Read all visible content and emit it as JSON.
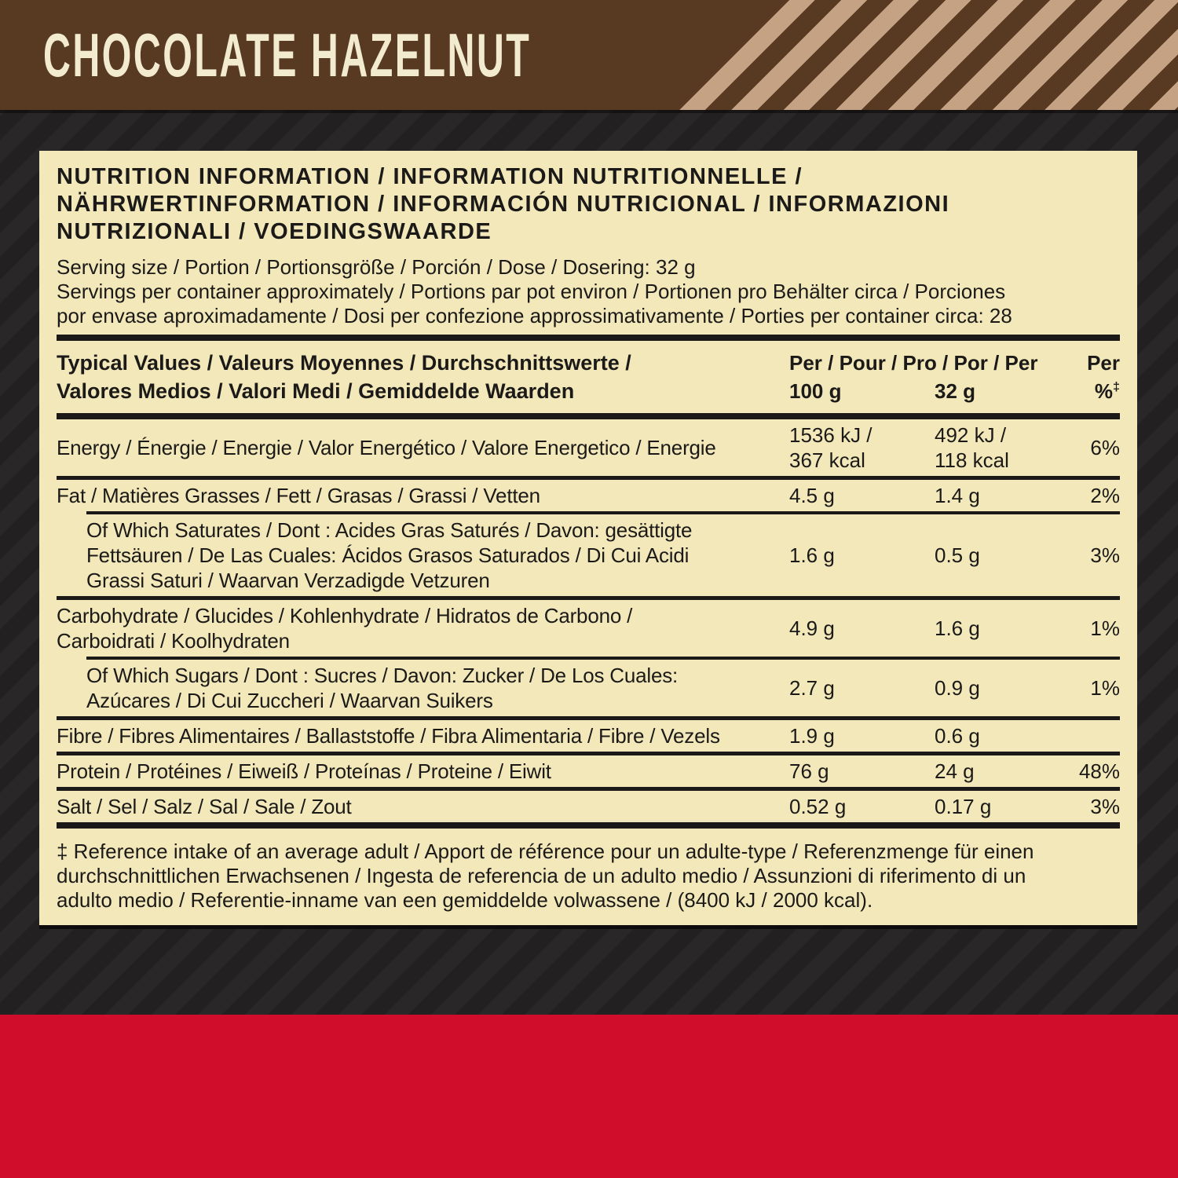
{
  "header": {
    "flavor": "CHOCOLATE HAZELNUT"
  },
  "panel": {
    "title": "NUTRITION INFORMATION / INFORMATION NUTRITIONNELLE /\nNÄHRWERTINFORMATION / INFORMACIÓN NUTRICIONAL / INFORMAZIONI\nNUTRIZIONALI / VOEDINGSWAARDE",
    "serving_size": "Serving size / Portion / Portionsgröße / Porción / Dose / Dosering: 32 g",
    "servings_per_container": "Servings per container approximately / Portions par pot environ / Portionen pro Behälter circa / Porciones\npor envase aproximadamente / Dosi per confezione approssimativamente / Porties per container circa: 28",
    "table": {
      "header": {
        "col_label": "Typical Values / Valeurs Moyennes / Durchschnittswerte /\nValores Medios / Valori Medi / Gemiddelde Waarden",
        "per_prefix": "Per / Pour / Pro / Por / Per",
        "per_last": "Per",
        "col_100g": "100 g",
        "col_32g": "32 g",
        "col_pct": "%",
        "col_pct_sup": "‡"
      },
      "rows": [
        {
          "label": "Energy / Énergie / Energie / Valor Energético / Valore Energetico / Energie",
          "per_100g": "1536 kJ /\n367 kcal",
          "per_32g": "492 kJ /\n118 kcal",
          "pct": "6%"
        },
        {
          "label": "Fat / Matières Grasses / Fett / Grasas / Grassi / Vetten",
          "per_100g": "4.5 g",
          "per_32g": "1.4 g",
          "pct": "2%"
        },
        {
          "label": "Of Which Saturates / Dont : Acides Gras Saturés / Davon: gesättigte\nFettsäuren / De Las Cuales: Ácidos Grasos Saturados / Di Cui Acidi\nGrassi Saturi / Waarvan Verzadigde Vetzuren",
          "per_100g": "1.6 g",
          "per_32g": "0.5 g",
          "pct": "3%"
        },
        {
          "label": "Carbohydrate / Glucides / Kohlenhydrate / Hidratos de Carbono /\nCarboidrati / Koolhydraten",
          "per_100g": "4.9 g",
          "per_32g": "1.6 g",
          "pct": "1%"
        },
        {
          "label": "Of Which Sugars / Dont : Sucres / Davon: Zucker / De Los Cuales:\nAzúcares / Di Cui Zuccheri / Waarvan Suikers",
          "per_100g": "2.7 g",
          "per_32g": "0.9 g",
          "pct": "1%"
        },
        {
          "label": "Fibre / Fibres Alimentaires / Ballaststoffe / Fibra Alimentaria / Fibre / Vezels",
          "per_100g": "1.9 g",
          "per_32g": "0.6 g",
          "pct": ""
        },
        {
          "label": "Protein / Protéines / Eiweiß / Proteínas / Proteine / Eiwit",
          "per_100g": "76 g",
          "per_32g": "24 g",
          "pct": "48%"
        },
        {
          "label": "Salt / Sel / Salz / Sal / Sale / Zout",
          "per_100g": "0.52 g",
          "per_32g": "0.17 g",
          "pct": "3%"
        }
      ]
    },
    "footnote": "‡ Reference intake of an average adult / Apport de référence pour un adulte-type / Referenzmenge für einen\ndurchschnittlichen Erwachsenen / Ingesta de referencia de un adulto medio / Assunzioni di riferimento di un\nadulto medio / Referentie-inname van een gemiddelde volwassene / (8400 kJ / 2000 kcal)."
  },
  "colors": {
    "brown": "#583a23",
    "tan_stripe": "#c6a284",
    "cream_panel": "#f2e8ba",
    "dark_background": "#242021",
    "dark_stripe": "#2a2728",
    "brand_red": "#d00e2b",
    "text": "#1c1a18",
    "flavor_text": "#f3ebd0"
  }
}
